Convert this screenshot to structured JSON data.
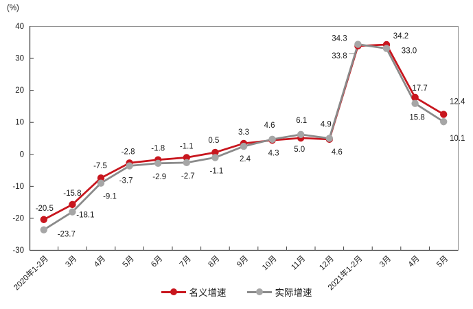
{
  "chart_data": {
    "type": "line",
    "unit_label": "(%)",
    "categories": [
      "2020年1-2月",
      "3月",
      "4月",
      "5月",
      "6月",
      "7月",
      "8月",
      "9月",
      "10月",
      "11月",
      "12月",
      "2021年1-2月",
      "3月",
      "4月",
      "5月"
    ],
    "series": [
      {
        "name": "名义增速",
        "color": "#c8161e",
        "marker_color": "#c8161e",
        "values": [
          -20.5,
          -15.8,
          -7.5,
          -2.8,
          -1.8,
          -1.1,
          0.5,
          3.3,
          4.3,
          5.0,
          4.6,
          33.8,
          34.2,
          17.7,
          12.4
        ]
      },
      {
        "name": "实际增速",
        "color": "#8a8a8a",
        "marker_color": "#a6a6a6",
        "values": [
          -23.7,
          -18.1,
          -9.1,
          -3.7,
          -2.9,
          -2.7,
          -1.1,
          2.4,
          4.6,
          6.1,
          4.9,
          34.3,
          33.0,
          15.8,
          10.1
        ]
      }
    ],
    "ylim": [
      -30,
      40
    ],
    "ytick_step": 10,
    "ytick_labels": [
      "40",
      "30",
      "20",
      "10",
      "0",
      "-10",
      "-20",
      "-30"
    ],
    "label_decimals": 1,
    "grid": false,
    "legend_position": "bottom"
  }
}
